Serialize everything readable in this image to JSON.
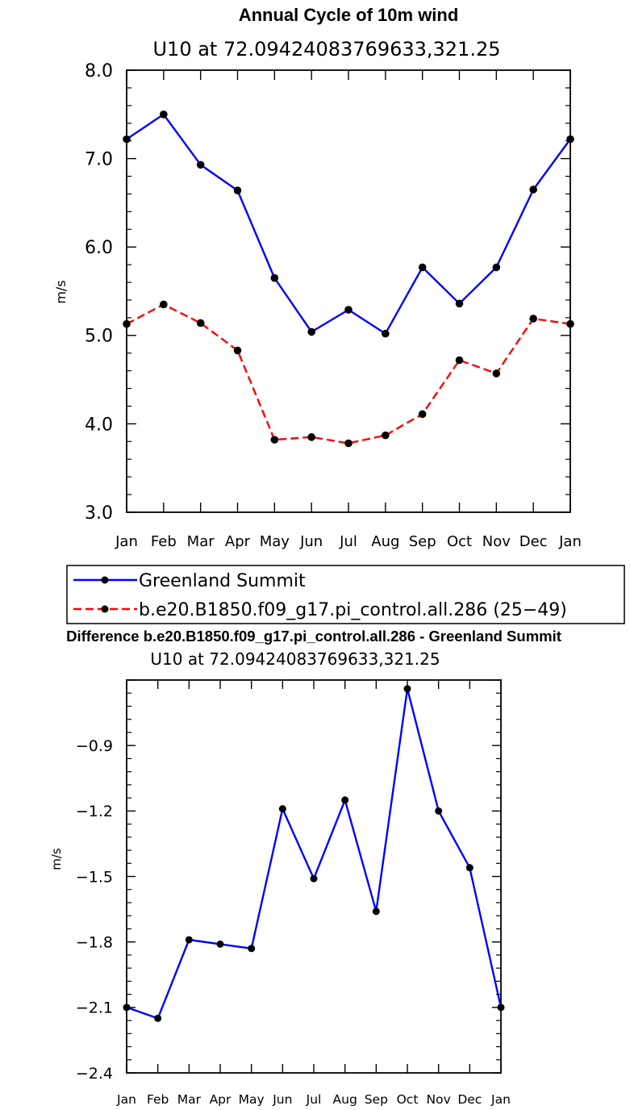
{
  "chart_data": [
    {
      "type": "line",
      "title": "Annual Cycle of 10m wind",
      "subtitle": "U10 at 72.09424083769633,321.25",
      "ylabel": "m/s",
      "xlabel": "",
      "ylim": [
        3.0,
        8.0
      ],
      "yticks": [
        "3.0",
        "4.0",
        "5.0",
        "6.0",
        "7.0",
        "8.0"
      ],
      "categories": [
        "Jan",
        "Feb",
        "Mar",
        "Apr",
        "May",
        "Jun",
        "Jul",
        "Aug",
        "Sep",
        "Oct",
        "Nov",
        "Dec",
        "Jan"
      ],
      "grid": false,
      "legend_position": "bottom",
      "series": [
        {
          "name": "Greenland Summit",
          "color": "#0000ff",
          "dash": "solid",
          "values": [
            7.22,
            7.5,
            6.93,
            6.64,
            5.65,
            5.04,
            5.29,
            5.02,
            5.77,
            5.36,
            5.77,
            6.65,
            7.22
          ]
        },
        {
          "name": "b.e20.B1850.f09_g17.pi_control.all.286 (25−49)",
          "color": "#ff0000",
          "dash": "dashed",
          "values": [
            5.13,
            5.35,
            5.14,
            4.83,
            3.82,
            3.85,
            3.78,
            3.87,
            4.11,
            4.72,
            4.57,
            5.19,
            5.13
          ]
        }
      ]
    },
    {
      "type": "line",
      "title": "Difference b.e20.B1850.f09_g17.pi_control.all.286 - Greenland Summit",
      "subtitle": "U10 at 72.09424083769633,321.25",
      "ylabel": "m/s",
      "xlabel": "",
      "ylim": [
        -2.4,
        -0.6
      ],
      "yticks": [
        "−2.4",
        "−2.1",
        "−1.8",
        "−1.5",
        "−1.2",
        "−0.9"
      ],
      "categories": [
        "Jan",
        "Feb",
        "Mar",
        "Apr",
        "May",
        "Jun",
        "Jul",
        "Aug",
        "Sep",
        "Oct",
        "Nov",
        "Dec",
        "Jan"
      ],
      "grid": false,
      "series": [
        {
          "color": "#0000ff",
          "dash": "solid",
          "values": [
            -2.1,
            -2.15,
            -1.79,
            -1.81,
            -1.83,
            -1.19,
            -1.51,
            -1.15,
            -1.66,
            -0.64,
            -1.2,
            -1.46,
            -2.1
          ]
        }
      ]
    }
  ]
}
